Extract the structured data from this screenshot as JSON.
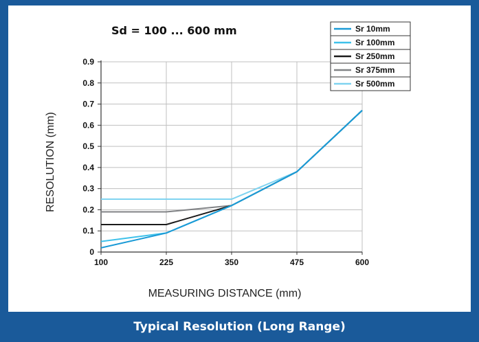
{
  "caption": "Typical Resolution (Long Range)",
  "chart_data": {
    "type": "line",
    "title": "Sd = 100 ... 600 mm",
    "xlabel": "MEASURING DISTANCE (mm)",
    "ylabel": "RESOLUTION (mm)",
    "x": [
      100,
      225,
      350,
      475,
      600
    ],
    "x_tick_labels": [
      "100",
      "225",
      "350",
      "475",
      "600"
    ],
    "y_tick_labels": [
      "0",
      "0.1",
      "0.2",
      "0.3",
      "0.4",
      "0.5",
      "0.6",
      "0.7",
      "0.8",
      "0.9"
    ],
    "xlim": [
      100,
      600
    ],
    "ylim": [
      0,
      0.9
    ],
    "grid": true,
    "legend_position": "top-right",
    "series": [
      {
        "name": "Sr 500mm",
        "color": "#7fd3f0",
        "values": [
          0.25,
          0.25,
          0.25,
          0.38,
          0.67
        ]
      },
      {
        "name": "Sr 375mm",
        "color": "#808285",
        "values": [
          0.19,
          0.19,
          0.22,
          0.38,
          0.67
        ]
      },
      {
        "name": "Sr 250mm",
        "color": "#1a1a1a",
        "values": [
          0.13,
          0.13,
          0.22,
          0.38,
          0.67
        ]
      },
      {
        "name": "Sr 100mm",
        "color": "#3ec1ea",
        "values": [
          0.05,
          0.09,
          0.22,
          0.38,
          0.67
        ]
      },
      {
        "name": "Sr 10mm",
        "color": "#1a9ad6",
        "values": [
          0.02,
          0.09,
          0.22,
          0.38,
          0.67
        ]
      }
    ],
    "legend_order": [
      "Sr 10mm",
      "Sr 100mm",
      "Sr 250mm",
      "Sr 375mm",
      "Sr 500mm"
    ]
  }
}
